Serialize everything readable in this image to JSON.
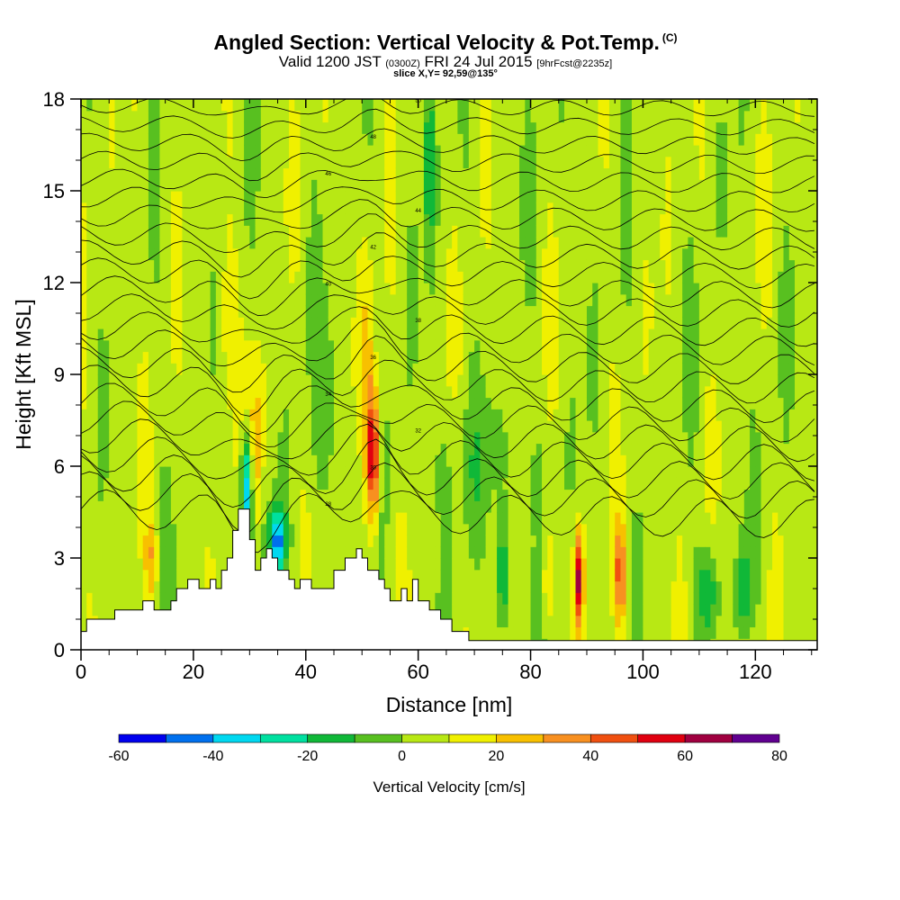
{
  "header": {
    "title": "Angled Section: Vertical Velocity & Pot.Temp.",
    "title_unit": "(C)",
    "subtitle_main": "Valid 1200 JST",
    "subtitle_utc": "(0300Z)",
    "subtitle_date": "FRI 24 Jul 2015",
    "subtitle_fcst": "[9hrFcst@2235z]",
    "slice": "slice X,Y= 92,59@135°"
  },
  "chart_data": {
    "type": "heatmap",
    "title": "Angled Section: Vertical Velocity & Pot.Temp. (C)",
    "xlabel": "Distance [nm]",
    "ylabel": "Height [Kft MSL]",
    "xlim": [
      0,
      131
    ],
    "ylim": [
      0,
      18
    ],
    "x_ticks": [
      "0",
      "20",
      "40",
      "60",
      "80",
      "100",
      "120"
    ],
    "y_ticks": [
      "0",
      "3",
      "6",
      "9",
      "12",
      "15",
      "18"
    ],
    "colorbar": {
      "title": "Vertical Velocity [cm/s]",
      "ticks": [
        "-60",
        "-40",
        "-20",
        "0",
        "20",
        "40",
        "60",
        "80"
      ],
      "range": [
        -60,
        80
      ],
      "step": 10,
      "colors": [
        "#0000ee",
        "#0070ee",
        "#00d8f0",
        "#00e0a0",
        "#10b838",
        "#58c020",
        "#b8e814",
        "#f0f000",
        "#f8c000",
        "#f89020",
        "#f05010",
        "#e00010",
        "#a00040",
        "#600090"
      ]
    },
    "terrain": {
      "x": [
        0,
        1,
        1,
        6,
        6,
        11,
        11,
        13,
        13,
        16,
        16,
        17,
        17,
        19,
        19,
        21,
        21,
        23,
        23,
        24,
        24,
        25,
        25,
        26,
        26,
        27,
        27,
        28,
        28,
        30,
        30,
        31,
        31,
        32,
        32,
        33,
        33,
        34,
        34,
        35,
        35,
        37,
        37,
        38,
        38,
        39,
        39,
        41,
        41,
        45,
        45,
        47,
        47,
        49,
        49,
        50,
        50,
        51,
        51,
        53,
        53,
        54,
        54,
        55,
        55,
        57,
        57,
        58,
        58,
        59,
        59,
        60,
        60,
        62,
        62,
        64,
        64,
        66,
        66,
        69,
        69,
        71,
        71,
        131
      ],
      "z_kft": [
        0.6,
        0.6,
        1.0,
        1.0,
        1.3,
        1.3,
        1.6,
        1.6,
        1.3,
        1.3,
        1.6,
        1.6,
        2.0,
        2.0,
        2.3,
        2.3,
        2.0,
        2.0,
        2.3,
        2.3,
        2.0,
        2.0,
        2.6,
        2.6,
        3.0,
        3.0,
        3.9,
        3.9,
        4.6,
        4.6,
        3.6,
        3.6,
        2.6,
        2.6,
        3.0,
        3.0,
        3.3,
        3.3,
        3.0,
        3.0,
        2.6,
        2.6,
        2.3,
        2.3,
        2.0,
        2.0,
        2.3,
        2.3,
        2.0,
        2.0,
        2.6,
        2.6,
        3.0,
        3.0,
        3.3,
        3.3,
        3.0,
        3.0,
        2.6,
        2.6,
        2.3,
        2.3,
        2.0,
        2.0,
        1.6,
        1.6,
        2.0,
        2.0,
        1.6,
        1.6,
        2.3,
        2.3,
        1.6,
        1.6,
        1.3,
        1.3,
        1.0,
        1.0,
        0.6,
        0.6,
        0.3,
        0.3,
        0.3,
        0.3
      ]
    },
    "isentropes": {
      "levels_kft": [
        4.6,
        5.2,
        5.8,
        6.4,
        7.0,
        7.6,
        8.2,
        8.8,
        9.4,
        10.0,
        10.6,
        11.2,
        11.8,
        12.4,
        13.0,
        13.6,
        14.2,
        14.8,
        15.4,
        16.0,
        16.6,
        17.2,
        17.8
      ],
      "labels": [
        "28",
        "30",
        "32",
        "34",
        "36",
        "38",
        "40",
        "42",
        "44",
        "46",
        "48",
        "50"
      ]
    }
  }
}
